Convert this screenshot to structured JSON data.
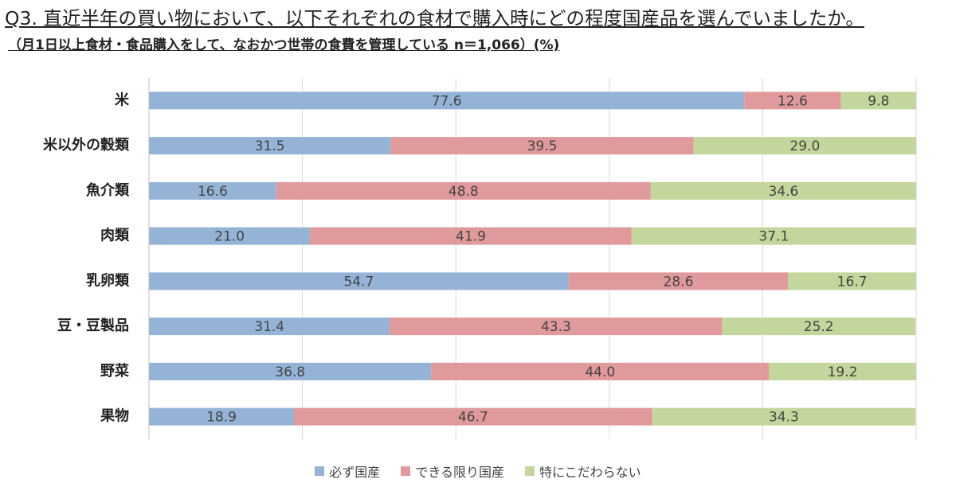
{
  "chart_data": {
    "type": "stacked-barh",
    "title": "Q3. 直近半年の買い物において、以下それぞれの食材で購入時にどの程度国産品を選んでいましたか。",
    "subtitle": "（月1日以上食材・食品購入をして、なおかつ世帯の食費を管理している n＝1,066）(%)",
    "categories": [
      "米",
      "米以外の穀類",
      "魚介類",
      "肉類",
      "乳卵類",
      "豆・豆製品",
      "野菜",
      "果物"
    ],
    "series": [
      {
        "name": "必ず国産",
        "color": "#95b3d7",
        "values": [
          77.6,
          31.5,
          16.6,
          21.0,
          54.7,
          31.4,
          36.8,
          18.9
        ],
        "value_labels": [
          "77.6",
          "31.5",
          "16.6",
          "21.0",
          "54.7",
          "31.4",
          "36.8",
          "18.9"
        ]
      },
      {
        "name": "できる限り国産",
        "color": "#e09a9b",
        "values": [
          12.6,
          39.5,
          48.8,
          41.9,
          28.6,
          43.3,
          44.0,
          46.7
        ],
        "value_labels": [
          "12.6",
          "39.5",
          "48.8",
          "41.9",
          "28.6",
          "43.3",
          "44.0",
          "46.7"
        ]
      },
      {
        "name": "特にこだわらない",
        "color": "#c3d69b",
        "values": [
          9.8,
          29.0,
          34.6,
          37.1,
          16.7,
          25.2,
          19.2,
          34.3
        ],
        "value_labels": [
          "9.8",
          "29.0",
          "34.6",
          "37.1",
          "16.7",
          "25.2",
          "19.2",
          "34.3"
        ]
      }
    ],
    "xlim": [
      0,
      100
    ],
    "xticks": [
      0,
      20,
      40,
      60,
      80,
      100
    ],
    "grid": true,
    "legend": "bottom"
  }
}
